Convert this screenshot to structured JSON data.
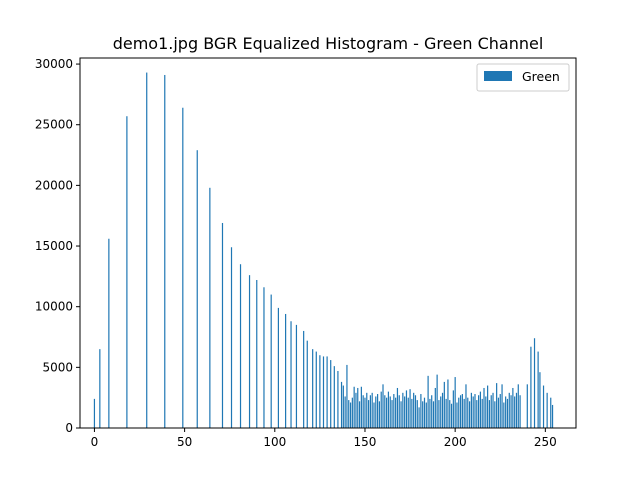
{
  "chart_data": {
    "type": "bar",
    "title": "demo1.jpg BGR Equalized Histogram - Green Channel",
    "xlabel": "",
    "ylabel": "",
    "xlim": [
      -8,
      267
    ],
    "ylim": [
      0,
      30500
    ],
    "xticks": [
      0,
      50,
      100,
      150,
      200,
      250
    ],
    "yticks": [
      0,
      5000,
      10000,
      15000,
      20000,
      25000,
      30000
    ],
    "grid": false,
    "legend": "top-right",
    "series": [
      {
        "name": "Green",
        "color": "#1f77b4",
        "points": [
          [
            0,
            2400
          ],
          [
            3,
            6500
          ],
          [
            8,
            15600
          ],
          [
            18,
            25700
          ],
          [
            29,
            29300
          ],
          [
            39,
            29100
          ],
          [
            49,
            26400
          ],
          [
            57,
            22900
          ],
          [
            64,
            19800
          ],
          [
            71,
            16900
          ],
          [
            76,
            14900
          ],
          [
            81,
            13500
          ],
          [
            86,
            12600
          ],
          [
            90,
            12200
          ],
          [
            94,
            11600
          ],
          [
            98,
            11000
          ],
          [
            102,
            9900
          ],
          [
            106,
            9400
          ],
          [
            109,
            8800
          ],
          [
            112,
            8500
          ],
          [
            116,
            8000
          ],
          [
            118,
            7200
          ],
          [
            121,
            6500
          ],
          [
            123,
            6300
          ],
          [
            125,
            6000
          ],
          [
            127,
            5900
          ],
          [
            129,
            5900
          ],
          [
            131,
            5600
          ],
          [
            133,
            5100
          ],
          [
            135,
            4700
          ],
          [
            137,
            3800
          ],
          [
            138,
            3500
          ],
          [
            139,
            2600
          ],
          [
            140,
            5200
          ],
          [
            141,
            2300
          ],
          [
            142,
            2100
          ],
          [
            143,
            2500
          ],
          [
            144,
            3400
          ],
          [
            145,
            2900
          ],
          [
            146,
            3300
          ],
          [
            147,
            2200
          ],
          [
            148,
            3400
          ],
          [
            149,
            2700
          ],
          [
            150,
            2500
          ],
          [
            151,
            2900
          ],
          [
            152,
            2300
          ],
          [
            153,
            2700
          ],
          [
            154,
            2900
          ],
          [
            155,
            2100
          ],
          [
            156,
            2600
          ],
          [
            157,
            2800
          ],
          [
            158,
            2200
          ],
          [
            159,
            3000
          ],
          [
            160,
            3600
          ],
          [
            161,
            2700
          ],
          [
            162,
            2500
          ],
          [
            163,
            3000
          ],
          [
            164,
            2600
          ],
          [
            165,
            2300
          ],
          [
            166,
            2800
          ],
          [
            167,
            2500
          ],
          [
            168,
            3300
          ],
          [
            169,
            2700
          ],
          [
            170,
            2200
          ],
          [
            171,
            2900
          ],
          [
            172,
            2600
          ],
          [
            173,
            3100
          ],
          [
            174,
            2500
          ],
          [
            175,
            3200
          ],
          [
            176,
            2400
          ],
          [
            177,
            2900
          ],
          [
            178,
            2700
          ],
          [
            179,
            2300
          ],
          [
            180,
            1700
          ],
          [
            181,
            2800
          ],
          [
            182,
            2200
          ],
          [
            183,
            2500
          ],
          [
            184,
            2100
          ],
          [
            185,
            4300
          ],
          [
            186,
            2400
          ],
          [
            187,
            2700
          ],
          [
            188,
            2200
          ],
          [
            189,
            3300
          ],
          [
            190,
            4400
          ],
          [
            191,
            2300
          ],
          [
            192,
            2600
          ],
          [
            193,
            2900
          ],
          [
            194,
            3800
          ],
          [
            195,
            2400
          ],
          [
            196,
            4000
          ],
          [
            197,
            2300
          ],
          [
            198,
            2000
          ],
          [
            199,
            3100
          ],
          [
            200,
            4200
          ],
          [
            201,
            2100
          ],
          [
            202,
            2500
          ],
          [
            203,
            2700
          ],
          [
            204,
            2800
          ],
          [
            205,
            2400
          ],
          [
            206,
            3600
          ],
          [
            207,
            2500
          ],
          [
            208,
            2200
          ],
          [
            209,
            2900
          ],
          [
            210,
            2600
          ],
          [
            211,
            2800
          ],
          [
            212,
            2300
          ],
          [
            213,
            2700
          ],
          [
            214,
            3000
          ],
          [
            215,
            2400
          ],
          [
            216,
            3300
          ],
          [
            217,
            2600
          ],
          [
            218,
            3500
          ],
          [
            219,
            2300
          ],
          [
            220,
            2700
          ],
          [
            221,
            2900
          ],
          [
            222,
            2200
          ],
          [
            223,
            3700
          ],
          [
            224,
            2500
          ],
          [
            225,
            2800
          ],
          [
            226,
            3600
          ],
          [
            227,
            2100
          ],
          [
            228,
            2600
          ],
          [
            229,
            2400
          ],
          [
            230,
            2900
          ],
          [
            231,
            2700
          ],
          [
            232,
            3300
          ],
          [
            233,
            2600
          ],
          [
            234,
            2900
          ],
          [
            235,
            3600
          ],
          [
            236,
            2700
          ],
          [
            240,
            3600
          ],
          [
            242,
            6700
          ],
          [
            244,
            7400
          ],
          [
            246,
            6300
          ],
          [
            247,
            4600
          ],
          [
            249,
            3500
          ],
          [
            251,
            2900
          ],
          [
            253,
            2500
          ],
          [
            254,
            1900
          ]
        ]
      }
    ]
  }
}
